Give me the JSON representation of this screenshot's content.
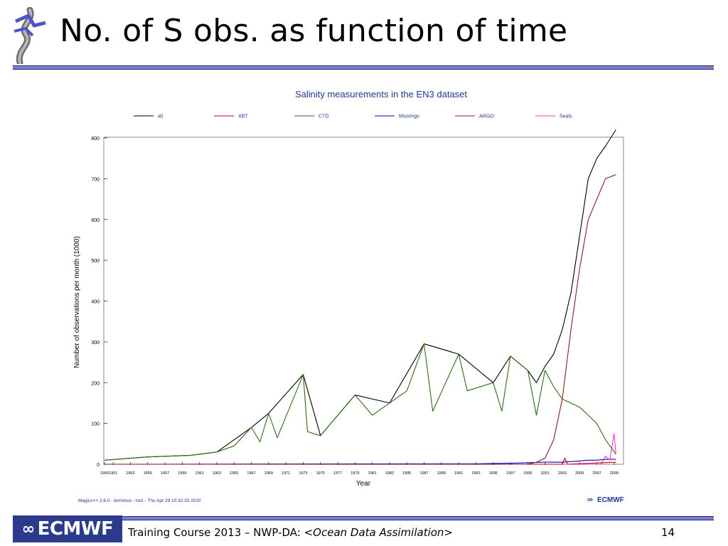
{
  "slide": {
    "title": "No. of S obs. as function of time",
    "footer_prefix": "Training Course 2013 – NWP-DA: ",
    "footer_italic": "<Ocean Data Assimilation>",
    "page_number": "14",
    "footer_logo_text": "ECMWF"
  },
  "chart_data": {
    "type": "line",
    "title": "Salinity measurements in the EN3 dataset",
    "xlabel": "Year",
    "ylabel": "Number of observations per month (1000)",
    "xlim": [
      1950,
      2010
    ],
    "ylim": [
      0,
      800
    ],
    "yticks": [
      0,
      100,
      200,
      300,
      400,
      500,
      600,
      700,
      800
    ],
    "xticks": [
      "1950",
      "1951",
      "1953",
      "1955",
      "1957",
      "1959",
      "1961",
      "1963",
      "1965",
      "1967",
      "1969",
      "1971",
      "1973",
      "1975",
      "1977",
      "1979",
      "1981",
      "1983",
      "1985",
      "1987",
      "1989",
      "1991",
      "1993",
      "1995",
      "1997",
      "1999",
      "2001",
      "2003",
      "2005",
      "2007",
      "2009"
    ],
    "grid": false,
    "legend_position": "top",
    "credit": "Magics++ 2.8.0 - terminus - ne1 - Thu Apr 29 10:32:33 2010",
    "brand": "ECMWF",
    "series": [
      {
        "name": "all",
        "color": "#000000",
        "x": [
          1950,
          1955,
          1960,
          1963,
          1967,
          1969,
          1973,
          1975,
          1979,
          1983,
          1987,
          1991,
          1995,
          1997,
          1999,
          2000,
          2001,
          2002,
          2003,
          2004,
          2005,
          2006,
          2007,
          2008,
          2009.2
        ],
        "y": [
          10,
          18,
          22,
          30,
          90,
          125,
          220,
          70,
          170,
          150,
          295,
          270,
          200,
          265,
          230,
          200,
          240,
          270,
          330,
          420,
          560,
          700,
          750,
          780,
          820
        ]
      },
      {
        "name": "XBT",
        "color": "#cc0000",
        "x": [
          1950,
          2001,
          2003,
          2003.3,
          2003.6,
          2009.2
        ],
        "y": [
          0,
          0,
          0,
          15,
          0,
          5
        ]
      },
      {
        "name": "CTD",
        "color": "#2e6b1a",
        "x": [
          1950,
          1955,
          1960,
          1963,
          1965,
          1967,
          1968,
          1969,
          1970,
          1973,
          1973.5,
          1975,
          1979,
          1981,
          1983,
          1985,
          1987,
          1988,
          1991,
          1992,
          1995,
          1996,
          1997,
          1999,
          2000,
          2001,
          2002,
          2003,
          2005,
          2006,
          2007,
          2008,
          2009.2
        ],
        "y": [
          10,
          18,
          22,
          30,
          45,
          90,
          55,
          125,
          65,
          220,
          80,
          70,
          170,
          120,
          150,
          180,
          295,
          130,
          270,
          180,
          200,
          130,
          265,
          230,
          120,
          230,
          190,
          160,
          140,
          120,
          100,
          60,
          25
        ]
      },
      {
        "name": "Moorings",
        "color": "#0000cc",
        "x": [
          1950,
          1993,
          1998,
          2001,
          2003,
          2005,
          2006,
          2007,
          2008,
          2009.2
        ],
        "y": [
          0,
          1,
          3,
          5,
          5,
          8,
          10,
          10,
          12,
          12
        ]
      },
      {
        "name": "ARGO",
        "color": "#8b1a1a",
        "x": [
          1950,
          1999,
          2000,
          2001,
          2002,
          2003,
          2004,
          2005,
          2006,
          2007,
          2008,
          2009.2
        ],
        "y": [
          0,
          0,
          5,
          15,
          60,
          160,
          330,
          480,
          600,
          650,
          700,
          710
        ]
      },
      {
        "name": "Seals",
        "color": "#ff33cc",
        "x": [
          1950,
          2007.5,
          2008,
          2008.5,
          2009,
          2009.2
        ],
        "y": [
          0,
          0,
          20,
          10,
          75,
          25
        ]
      }
    ]
  }
}
